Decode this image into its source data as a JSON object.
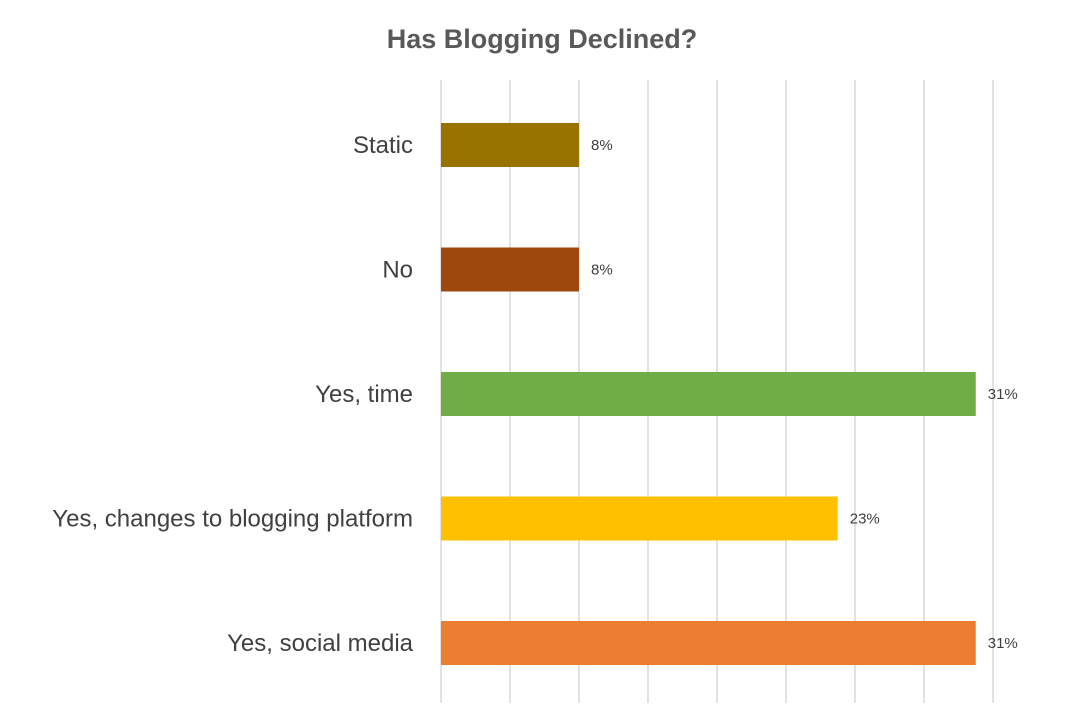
{
  "chart_data": {
    "type": "bar",
    "orientation": "horizontal",
    "title": "Has Blogging Declined?",
    "xlabel": "",
    "ylabel": "",
    "categories": [
      "Static",
      "No",
      "Yes, time",
      "Yes, changes to blogging platform",
      "Yes, social media"
    ],
    "values": [
      8,
      8,
      31,
      23,
      31
    ],
    "value_labels": [
      "8%",
      "8%",
      "31%",
      "23%",
      "31%"
    ],
    "bar_colors": [
      "#997300",
      "#9e480e",
      "#70ad47",
      "#ffc000",
      "#ed7d31"
    ],
    "xlim": [
      0,
      35
    ],
    "grid": true,
    "legend": "none"
  }
}
